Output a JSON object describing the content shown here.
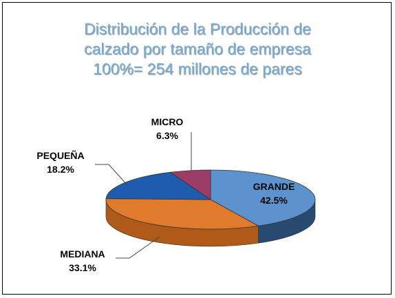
{
  "chart_data": {
    "type": "pie",
    "title_lines": [
      "Distribución de la Producción de",
      "calzado por tamaño de empresa",
      "100%= 254 millones de pares"
    ],
    "slices": [
      {
        "label": "GRANDE",
        "value_label": "42.5%",
        "value": 42.5,
        "color": "#5C92CE",
        "side_color": "#284A70"
      },
      {
        "label": "MEDIANA",
        "value_label": "33.1%",
        "value": 33.1,
        "color": "#E07A2C",
        "side_color": "#B05A19"
      },
      {
        "label": "PEQUEÑA",
        "value_label": "18.2%",
        "value": 18.2,
        "color": "#1D5CAE",
        "side_color": "#123C74"
      },
      {
        "label": "MICRO",
        "value_label": "6.3%",
        "value": 6.3,
        "color": "#9C3D68",
        "side_color": "#6A2645"
      }
    ]
  }
}
